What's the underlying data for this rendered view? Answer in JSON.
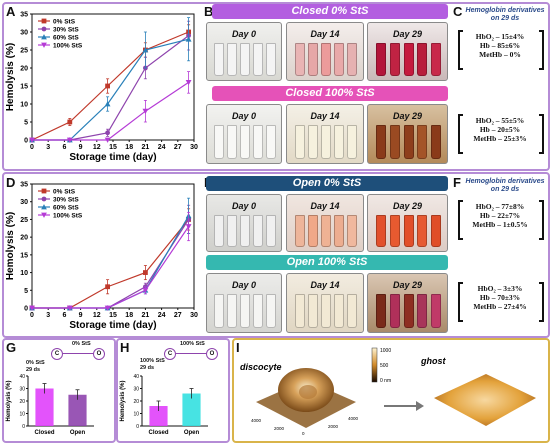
{
  "panels": {
    "A": "A",
    "B": "B",
    "C": "C",
    "D": "D",
    "E": "E",
    "F": "F",
    "G": "G",
    "H": "H",
    "I": "I"
  },
  "banners": {
    "b_top": "Closed    0% StS",
    "b_bottom": "Closed 100% StS",
    "e_top": "Open 0% StS",
    "e_bottom": "Open 100% StS"
  },
  "days": {
    "d0": "Day 0",
    "d14": "Day 14",
    "d29": "Day 29"
  },
  "colors": {
    "s0": "#c0392b",
    "s30": "#8e44ad",
    "s60": "#2980b9",
    "s100": "#b53bd6",
    "purple_frame": "#b58cd6",
    "orange_frame": "#d9b44a"
  },
  "hemo": {
    "C": {
      "title": "Hemoglobin derivatives on 29 ds",
      "top": [
        "HbO₂ – 15±4%",
        "Hb – 85±6%",
        "MetHb – 0%"
      ],
      "bottom": [
        "HbO₂ – 55±5%",
        "Hb – 20±5%",
        "MetHb – 25±3%"
      ]
    },
    "F": {
      "title": "Hemoglobin derivatives on 29 ds",
      "top": [
        "HbO₂ – 77±8%",
        "Hb – 22±7%",
        "MetHb – 1±0.5%"
      ],
      "bottom": [
        "HbO₂ – 3±3%",
        "Hb – 70±3%",
        "MetHb – 27±4%"
      ]
    }
  },
  "G": {
    "label": "0% StS",
    "sub": "0% StS",
    "ds": "29 ds",
    "ylabel": "Hemolysis (%)",
    "cats": [
      "Closed",
      "Open"
    ],
    "circle_c": "C",
    "circle_o": "O",
    "yticks": [
      "0",
      "10",
      "20",
      "30",
      "40"
    ]
  },
  "H": {
    "label": "100% StS",
    "sub": "100% StS",
    "ds": "29 ds",
    "ylabel": "Hemolysis (%)",
    "cats": [
      "Closed",
      "Open"
    ],
    "circle_c": "C",
    "circle_o": "O",
    "yticks": [
      "0",
      "10",
      "20",
      "30",
      "40"
    ]
  },
  "I": {
    "discocyte": "discocyte",
    "ghost": "ghost",
    "scale_top": "1000",
    "scale_mid": "500",
    "scale_bot": "0 nm",
    "axis_ticks": [
      "4000",
      "2000",
      "0",
      "2000",
      "4000"
    ]
  },
  "chart_data": [
    {
      "panel": "A",
      "type": "line",
      "xlabel": "Storage time (day)",
      "ylabel": "Hemolysis (%)",
      "xlim": [
        0,
        30
      ],
      "ylim": [
        0,
        35
      ],
      "xticks": [
        0,
        3,
        6,
        9,
        12,
        15,
        18,
        21,
        24,
        27,
        30
      ],
      "yticks": [
        0,
        5,
        10,
        15,
        20,
        25,
        30,
        35
      ],
      "legend": "top-left",
      "series": [
        {
          "name": "0% StS",
          "color": "#c0392b",
          "marker": "square",
          "x": [
            0,
            7,
            14,
            21,
            29
          ],
          "y": [
            0,
            5,
            15,
            25,
            30
          ],
          "err": [
            0,
            1,
            2,
            2,
            2
          ]
        },
        {
          "name": "30% StS",
          "color": "#8e44ad",
          "marker": "circle",
          "x": [
            0,
            7,
            14,
            21,
            29
          ],
          "y": [
            0,
            0,
            2,
            20,
            29
          ],
          "err": [
            0,
            0,
            1,
            3,
            4
          ]
        },
        {
          "name": "60% StS",
          "color": "#2980b9",
          "marker": "triangle",
          "x": [
            0,
            7,
            14,
            21,
            29
          ],
          "y": [
            0,
            0,
            10,
            25,
            28
          ],
          "err": [
            0,
            0,
            2,
            5,
            6
          ]
        },
        {
          "name": "100% StS",
          "color": "#b53bd6",
          "marker": "triangle-down",
          "x": [
            0,
            7,
            14,
            21,
            29
          ],
          "y": [
            0,
            0,
            0,
            8,
            16
          ],
          "err": [
            0,
            0,
            0,
            3,
            3
          ]
        }
      ]
    },
    {
      "panel": "D",
      "type": "line",
      "xlabel": "Storage time (day)",
      "ylabel": "Hemolysis (%)",
      "xlim": [
        0,
        30
      ],
      "ylim": [
        0,
        35
      ],
      "xticks": [
        0,
        3,
        6,
        9,
        12,
        15,
        18,
        21,
        24,
        27,
        30
      ],
      "yticks": [
        0,
        5,
        10,
        15,
        20,
        25,
        30,
        35
      ],
      "legend": "top-left",
      "series": [
        {
          "name": "0% StS",
          "color": "#c0392b",
          "marker": "square",
          "x": [
            0,
            7,
            14,
            21,
            29
          ],
          "y": [
            0,
            0,
            6,
            10,
            25
          ],
          "err": [
            0,
            0,
            2,
            2,
            3
          ]
        },
        {
          "name": "30% StS",
          "color": "#8e44ad",
          "marker": "circle",
          "x": [
            0,
            7,
            14,
            21,
            29
          ],
          "y": [
            0,
            0,
            0,
            6,
            25
          ],
          "err": [
            0,
            0,
            0,
            1,
            4
          ]
        },
        {
          "name": "60% StS",
          "color": "#2980b9",
          "marker": "triangle",
          "x": [
            0,
            7,
            14,
            21,
            29
          ],
          "y": [
            0,
            0,
            0,
            5,
            26
          ],
          "err": [
            0,
            0,
            0,
            1,
            5
          ]
        },
        {
          "name": "100% StS",
          "color": "#b53bd6",
          "marker": "triangle-down",
          "x": [
            0,
            7,
            14,
            21,
            29
          ],
          "y": [
            0,
            0,
            0,
            5,
            23
          ],
          "err": [
            0,
            0,
            0,
            1,
            4
          ]
        }
      ]
    },
    {
      "panel": "G",
      "type": "bar",
      "categories": [
        "Closed",
        "Open"
      ],
      "values": [
        30,
        25
      ],
      "err": [
        4,
        4
      ],
      "colors": [
        "#e040fb",
        "#8e44ad"
      ],
      "ylim": [
        0,
        40
      ],
      "ylabel": "Hemolysis (%)"
    },
    {
      "panel": "H",
      "type": "bar",
      "categories": [
        "Closed",
        "Open"
      ],
      "values": [
        16,
        26
      ],
      "err": [
        4,
        4
      ],
      "colors": [
        "#e040fb",
        "#33e0e0"
      ],
      "ylim": [
        0,
        40
      ],
      "ylabel": "Hemolysis (%)"
    }
  ]
}
